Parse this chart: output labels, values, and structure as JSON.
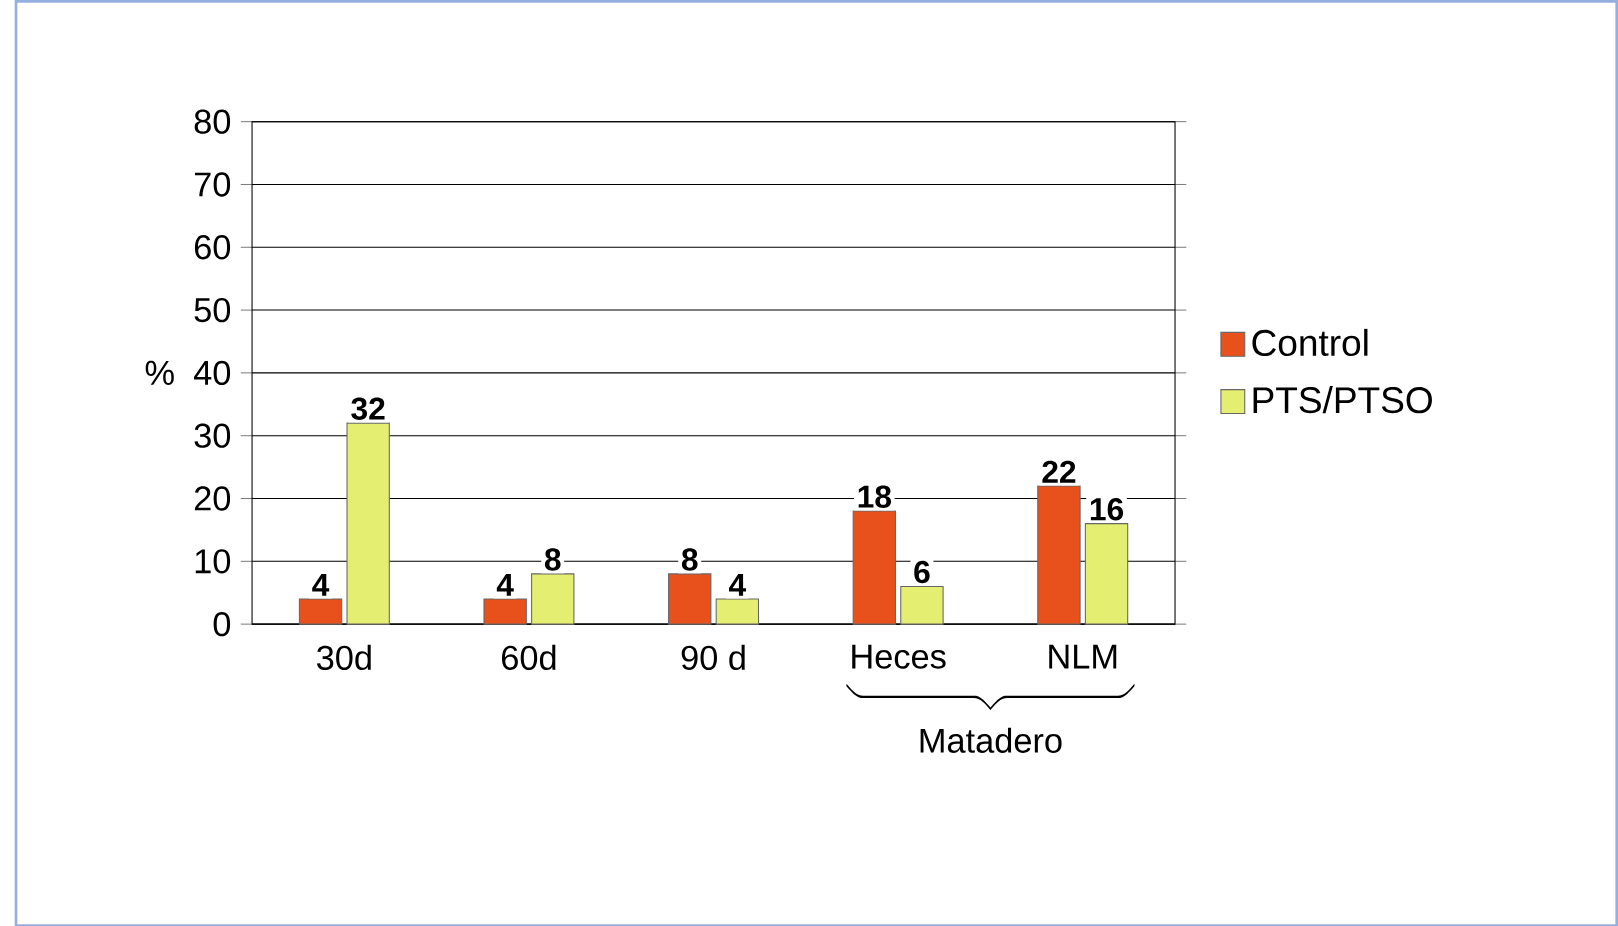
{
  "chart_data": {
    "type": "bar",
    "ylabel": "%",
    "categories": [
      "30d",
      "60d",
      "90 d",
      "Heces",
      "NLM"
    ],
    "series": [
      {
        "name": "Control",
        "color": "#e8501c",
        "values": [
          4,
          4,
          8,
          18,
          22
        ]
      },
      {
        "name": "PTS/PTSO",
        "color": "#e4ee70",
        "values": [
          32,
          8,
          4,
          6,
          16
        ]
      }
    ],
    "ylim": [
      0,
      80
    ],
    "yticks": [
      0,
      10,
      20,
      30,
      40,
      50,
      60,
      70,
      80
    ],
    "grid": "y",
    "legend": "right",
    "data_labels": true,
    "annotations": [
      "Matadero"
    ]
  }
}
